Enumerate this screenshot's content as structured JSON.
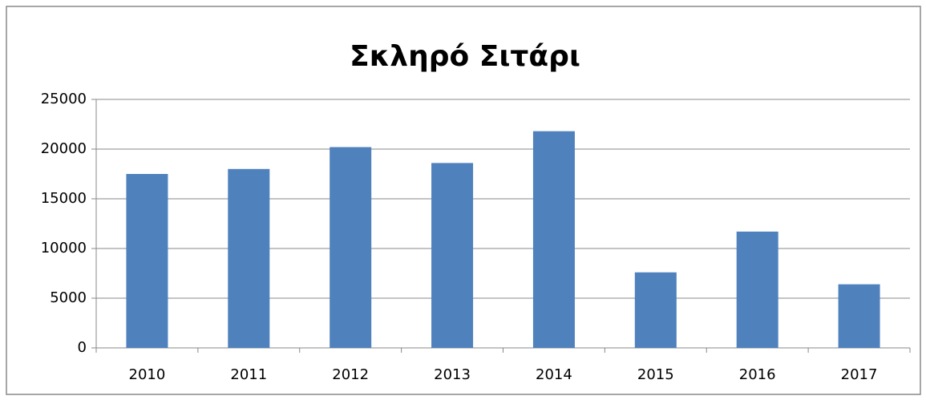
{
  "chart_data": {
    "type": "bar",
    "title": "Σκληρό Σιτάρι",
    "categories": [
      "2010",
      "2011",
      "2012",
      "2013",
      "2014",
      "2015",
      "2016",
      "2017"
    ],
    "values": [
      17500,
      18000,
      20200,
      18600,
      21800,
      7600,
      11700,
      6400
    ],
    "color": "#4f81bd",
    "ylim": [
      0,
      25000
    ],
    "yticks": [
      0,
      5000,
      10000,
      15000,
      20000,
      25000
    ],
    "grid": true
  }
}
